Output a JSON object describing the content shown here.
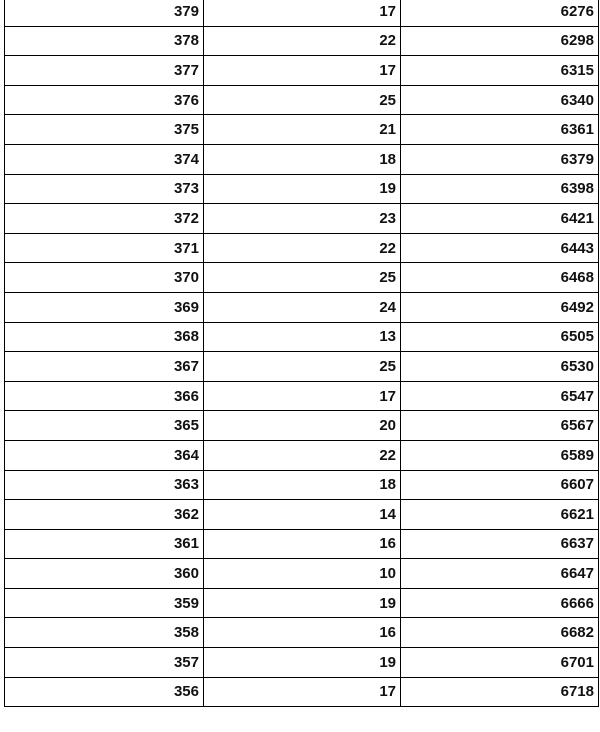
{
  "table": {
    "rows": [
      [
        379,
        17,
        6276
      ],
      [
        378,
        22,
        6298
      ],
      [
        377,
        17,
        6315
      ],
      [
        376,
        25,
        6340
      ],
      [
        375,
        21,
        6361
      ],
      [
        374,
        18,
        6379
      ],
      [
        373,
        19,
        6398
      ],
      [
        372,
        23,
        6421
      ],
      [
        371,
        22,
        6443
      ],
      [
        370,
        25,
        6468
      ],
      [
        369,
        24,
        6492
      ],
      [
        368,
        13,
        6505
      ],
      [
        367,
        25,
        6530
      ],
      [
        366,
        17,
        6547
      ],
      [
        365,
        20,
        6567
      ],
      [
        364,
        22,
        6589
      ],
      [
        363,
        18,
        6607
      ],
      [
        362,
        14,
        6621
      ],
      [
        361,
        16,
        6637
      ],
      [
        360,
        10,
        6647
      ],
      [
        359,
        19,
        6666
      ],
      [
        358,
        16,
        6682
      ],
      [
        357,
        19,
        6701
      ],
      [
        356,
        17,
        6718
      ]
    ]
  }
}
